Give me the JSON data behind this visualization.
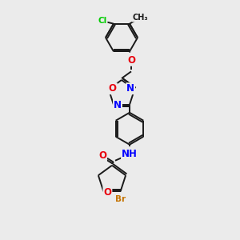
{
  "bg_color": "#ebebeb",
  "bond_color": "#1a1a1a",
  "atom_colors": {
    "O": "#e8000d",
    "N": "#0000ff",
    "Cl": "#00cc00",
    "Br": "#c47300",
    "C": "#1a1a1a"
  },
  "font_size": 7.5,
  "bond_lw": 1.4,
  "double_sep": 2.2
}
